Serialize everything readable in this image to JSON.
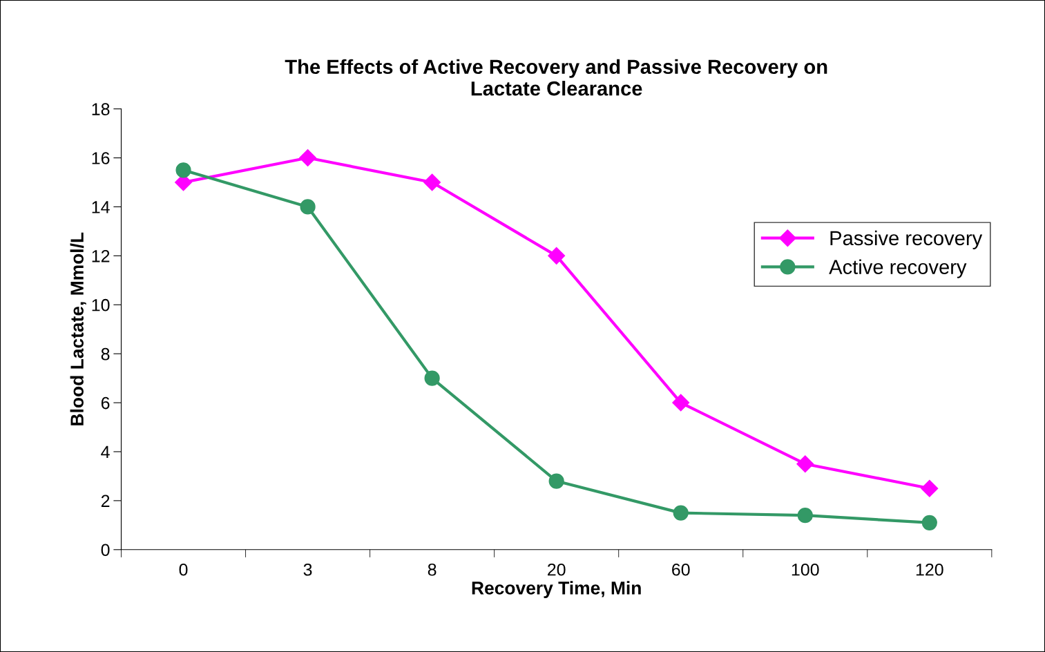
{
  "chart_data": {
    "type": "line",
    "title": "The Effects of Active Recovery and Passive Recovery on\nLactate Clearance",
    "xlabel": "Recovery Time, Min",
    "ylabel": "Blood Lactate, Mmol/L",
    "categories": [
      "0",
      "3",
      "8",
      "20",
      "60",
      "100",
      "120"
    ],
    "series": [
      {
        "name": "Passive recovery",
        "color": "#ff00ff",
        "marker": "diamond",
        "values": [
          15,
          16,
          15,
          12,
          6,
          3.5,
          2.5
        ]
      },
      {
        "name": "Active recovery",
        "color": "#339966",
        "marker": "circle",
        "values": [
          15.5,
          14,
          7,
          2.8,
          1.5,
          1.4,
          1.1
        ]
      }
    ],
    "ylim": [
      0,
      18
    ],
    "yticks": [
      0,
      2,
      4,
      6,
      8,
      10,
      12,
      14,
      16,
      18
    ],
    "grid": false,
    "legend": "right",
    "line_style": "solid"
  }
}
